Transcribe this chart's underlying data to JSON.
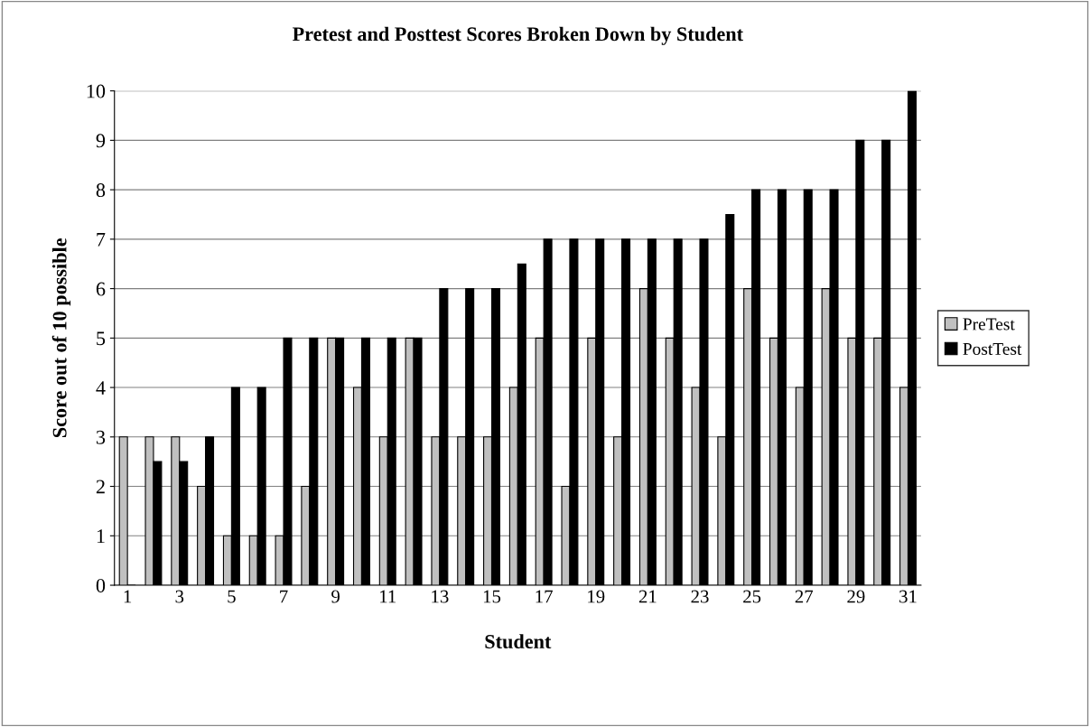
{
  "chart_data": {
    "type": "bar",
    "title": "Pretest and Posttest Scores Broken Down by Student",
    "xlabel": "Student",
    "ylabel": "Score out of 10 possible",
    "categories": [
      "1",
      null,
      "3",
      null,
      "5",
      null,
      "7",
      null,
      "9",
      null,
      "11",
      null,
      "13",
      null,
      "15",
      null,
      "17",
      null,
      "19",
      null,
      "21",
      null,
      "23",
      null,
      "25",
      null,
      "27",
      null,
      "29",
      null,
      "31"
    ],
    "series": [
      {
        "name": "PreTest",
        "color": "#c0c0c0",
        "values": [
          3,
          3,
          3,
          2,
          1,
          1,
          1,
          2,
          5,
          4,
          3,
          5,
          3,
          3,
          3,
          4,
          5,
          2,
          5,
          3,
          6,
          5,
          4,
          3,
          6,
          5,
          4,
          6,
          5,
          5,
          4
        ]
      },
      {
        "name": "PostTest",
        "color": "#000000",
        "values": [
          0,
          2.5,
          2.5,
          3,
          4,
          4,
          5,
          5,
          5,
          5,
          5,
          5,
          6,
          6,
          6,
          6.5,
          7,
          7,
          7,
          7,
          7,
          7,
          7,
          7.5,
          8,
          8,
          8,
          8,
          9,
          9,
          10
        ]
      }
    ],
    "ylim": [
      0,
      10
    ],
    "yticks": [
      0,
      1,
      2,
      3,
      4,
      5,
      6,
      7,
      8,
      9,
      10
    ],
    "grid": "y",
    "legend": "right"
  }
}
